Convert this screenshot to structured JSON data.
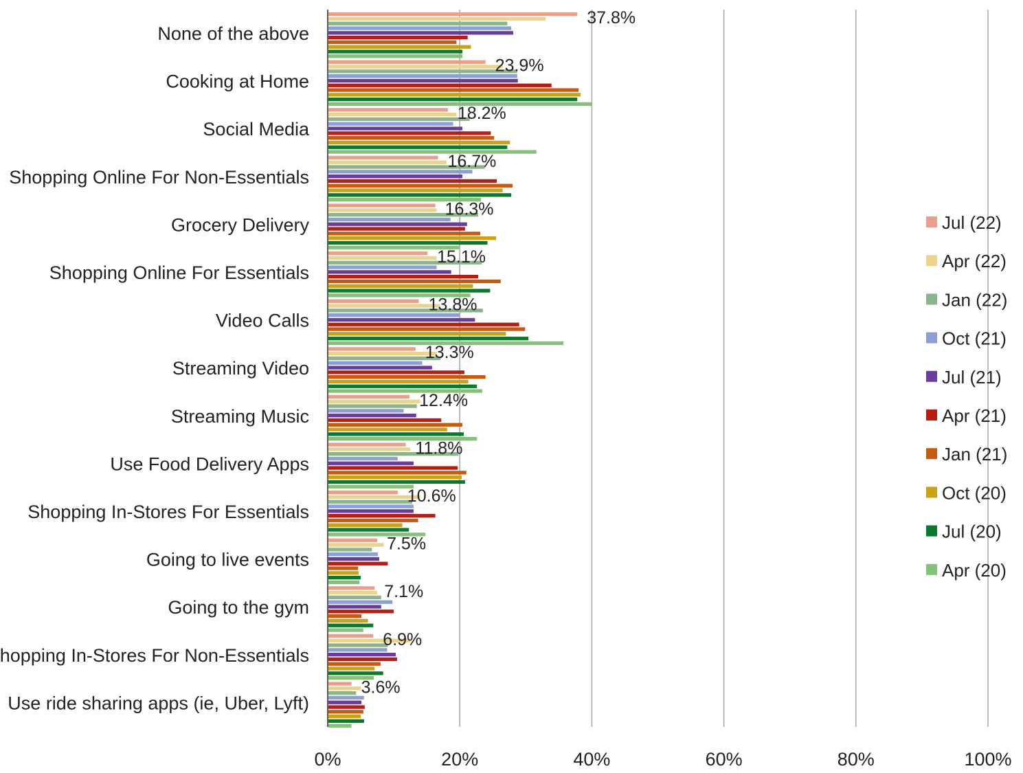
{
  "chart_data": {
    "type": "bar",
    "orientation": "horizontal",
    "title": "",
    "xlabel": "",
    "ylabel": "",
    "xlim": [
      0,
      100
    ],
    "x_ticks": [
      "0%",
      "20%",
      "40%",
      "60%",
      "80%",
      "100%"
    ],
    "grid": "vertical lines",
    "legend_position": "right",
    "categories": [
      "None of the above",
      "Cooking at Home",
      "Social Media",
      "Shopping Online For Non-Essentials",
      "Grocery Delivery",
      "Shopping Online For Essentials",
      "Video Calls",
      "Streaming Video",
      "Streaming Music",
      "Use Food Delivery Apps",
      "Shopping In-Stores For Essentials",
      "Going to live events",
      "Going to the gym",
      "Shopping In-Stores For Non-Essentials",
      "Use ride sharing apps (ie, Uber, Lyft)"
    ],
    "data_labels": [
      "37.8%",
      "23.9%",
      "18.2%",
      "16.7%",
      "16.3%",
      "15.1%",
      "13.8%",
      "13.3%",
      "12.4%",
      "11.8%",
      "10.6%",
      "7.5%",
      "7.1%",
      "6.9%",
      "3.6%"
    ],
    "series": [
      {
        "name": "Jul (22)",
        "color": "#e8a08a",
        "values": [
          37.8,
          23.9,
          18.2,
          16.7,
          16.3,
          15.1,
          13.8,
          13.3,
          12.4,
          11.8,
          10.6,
          7.5,
          7.1,
          6.9,
          3.6
        ]
      },
      {
        "name": "Apr (22)",
        "color": "#ead38f",
        "values": [
          33.0,
          26.5,
          19.5,
          18.0,
          16.5,
          16.5,
          17.0,
          16.5,
          14.0,
          12.5,
          14.0,
          8.5,
          7.5,
          12.5,
          5.0
        ]
      },
      {
        "name": "Jan (22)",
        "color": "#8cb38a",
        "values": [
          27.2,
          28.7,
          21.5,
          23.8,
          22.8,
          23.3,
          23.5,
          17.1,
          13.5,
          19.8,
          12.8,
          6.7,
          8.1,
          9.1,
          4.3
        ]
      },
      {
        "name": "Oct (21)",
        "color": "#8ca0d2",
        "values": [
          27.8,
          28.7,
          19.0,
          21.9,
          18.6,
          16.5,
          20.0,
          14.3,
          11.5,
          10.6,
          13.0,
          7.6,
          9.8,
          9.0,
          5.5
        ]
      },
      {
        "name": "Jul (21)",
        "color": "#6a3d9a",
        "values": [
          28.1,
          28.8,
          20.4,
          20.4,
          21.1,
          18.7,
          22.3,
          15.8,
          13.4,
          13.0,
          13.0,
          7.8,
          8.1,
          10.3,
          5.1
        ]
      },
      {
        "name": "Apr (21)",
        "color": "#b22015",
        "values": [
          21.2,
          33.9,
          24.7,
          25.6,
          20.8,
          22.8,
          29.0,
          20.7,
          17.2,
          19.7,
          16.3,
          9.1,
          10.0,
          10.5,
          5.6
        ]
      },
      {
        "name": "Jan (21)",
        "color": "#c55a11",
        "values": [
          19.5,
          38.0,
          25.2,
          28.0,
          23.1,
          26.2,
          29.9,
          23.9,
          20.4,
          21.0,
          13.7,
          4.6,
          5.1,
          8.0,
          5.4
        ]
      },
      {
        "name": "Oct (20)",
        "color": "#c9a21a",
        "values": [
          21.7,
          38.3,
          27.6,
          26.5,
          25.5,
          22.0,
          27.0,
          21.3,
          18.1,
          20.3,
          11.3,
          4.7,
          6.1,
          7.1,
          5.0
        ]
      },
      {
        "name": "Jul (20)",
        "color": "#0a7a2a",
        "values": [
          20.4,
          37.8,
          27.2,
          27.8,
          24.2,
          24.6,
          30.4,
          22.6,
          20.6,
          20.8,
          12.3,
          5.0,
          6.9,
          8.4,
          5.5
        ]
      },
      {
        "name": "Apr (20)",
        "color": "#86c07a",
        "values": [
          20.4,
          40.0,
          31.6,
          23.2,
          19.9,
          21.6,
          35.7,
          23.4,
          22.6,
          13.0,
          14.8,
          4.8,
          5.4,
          7.0,
          3.6
        ]
      }
    ]
  }
}
